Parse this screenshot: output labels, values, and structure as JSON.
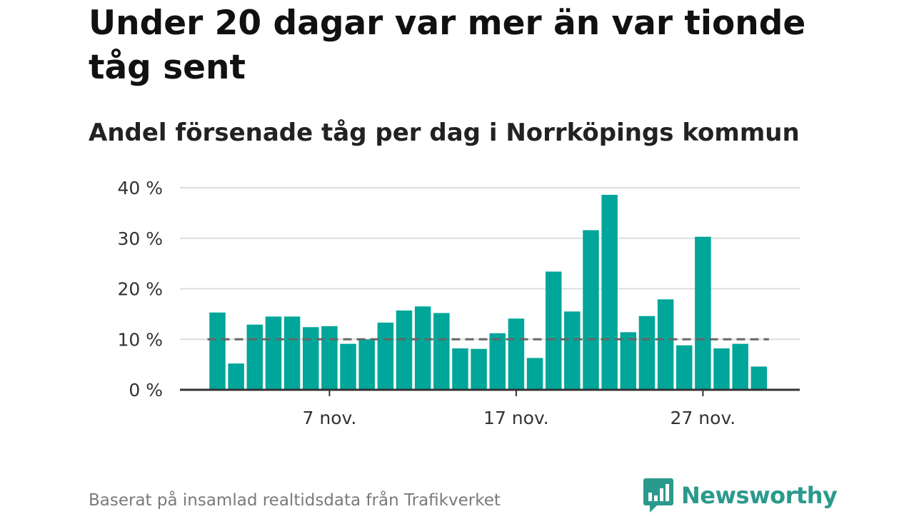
{
  "page": {
    "title": "Under 20 dagar var mer än var tionde tåg sent",
    "subtitle": "Andel försenade tåg per dag i Norrköpings kommun",
    "source": "Baserat på insamlad realtidsdata från Trafikverket",
    "brand": "Newsworthy"
  },
  "colors": {
    "bar": "#00a699",
    "reference_line": "#666666",
    "grid": "#dddddd",
    "axis": "#333333",
    "brand": "#2a9a8c"
  },
  "chart_data": {
    "type": "bar",
    "x": [
      1,
      2,
      3,
      4,
      5,
      6,
      7,
      8,
      9,
      10,
      11,
      12,
      13,
      14,
      15,
      16,
      17,
      18,
      19,
      20,
      21,
      22,
      23,
      24,
      25,
      26,
      27,
      28,
      29,
      30
    ],
    "values": [
      15.3,
      5.2,
      12.9,
      14.5,
      14.5,
      12.4,
      12.6,
      9.1,
      10.0,
      13.3,
      15.7,
      16.5,
      15.2,
      8.2,
      8.1,
      11.2,
      14.1,
      6.3,
      23.4,
      15.5,
      31.6,
      38.6,
      11.4,
      14.6,
      17.9,
      8.8,
      30.3,
      8.2,
      9.1,
      4.6
    ],
    "reference_line": 10,
    "x_ticks": [
      {
        "x": 7,
        "label": "7 nov."
      },
      {
        "x": 17,
        "label": "17 nov."
      },
      {
        "x": 27,
        "label": "27 nov."
      }
    ],
    "y_ticks": [
      {
        "value": 0,
        "label": "0 %"
      },
      {
        "value": 10,
        "label": "10 %"
      },
      {
        "value": 20,
        "label": "20 %"
      },
      {
        "value": 30,
        "label": "30 %"
      },
      {
        "value": 40,
        "label": "40 %"
      }
    ],
    "ylim": [
      0,
      40
    ],
    "grid": true,
    "legend": "none"
  }
}
